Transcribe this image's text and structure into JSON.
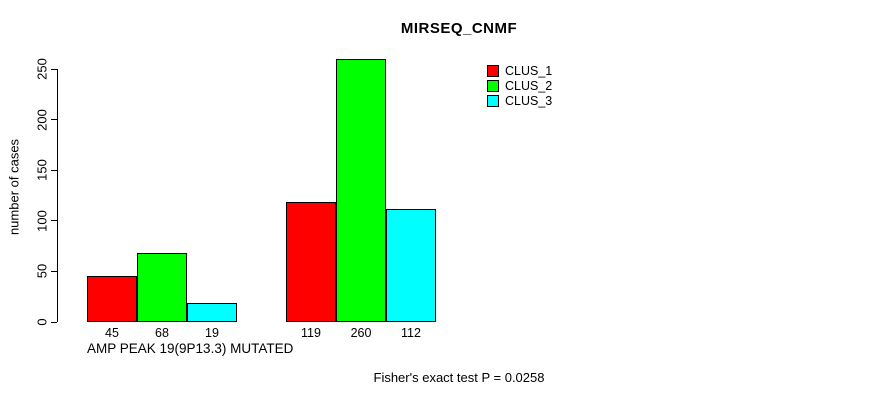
{
  "title": "MIRSEQ_CNMF",
  "y_axis": {
    "label": "number of cases"
  },
  "group_label": "AMP PEAK 19(9P13.3) MUTATED",
  "footnote": "Fisher's exact test P = 0.0258",
  "legend": {
    "items": [
      {
        "label": "CLUS_1",
        "color": "#ff0000"
      },
      {
        "label": "CLUS_2",
        "color": "#00ff00"
      },
      {
        "label": "CLUS_3",
        "color": "#00ffff"
      }
    ]
  },
  "chart_data": {
    "type": "bar",
    "title": "MIRSEQ_CNMF",
    "xlabel": "AMP PEAK 19(9P13.3) MUTATED",
    "ylabel": "number of cases",
    "ylim": [
      0,
      250
    ],
    "yticks": [
      0,
      50,
      100,
      150,
      200,
      250
    ],
    "grid": false,
    "legend_position": "top-right-inside",
    "categories": [
      "AMP PEAK 19(9P13.3) MUTATED",
      ""
    ],
    "series": [
      {
        "name": "CLUS_1",
        "color": "#ff0000",
        "values": [
          45,
          119
        ]
      },
      {
        "name": "CLUS_2",
        "color": "#00ff00",
        "values": [
          68,
          260
        ]
      },
      {
        "name": "CLUS_3",
        "color": "#00ffff",
        "values": [
          19,
          112
        ]
      }
    ],
    "bar_value_labels": [
      [
        "45",
        "68",
        "19"
      ],
      [
        "119",
        "260",
        "112"
      ]
    ],
    "annotation": "Fisher's exact test P = 0.0258"
  }
}
